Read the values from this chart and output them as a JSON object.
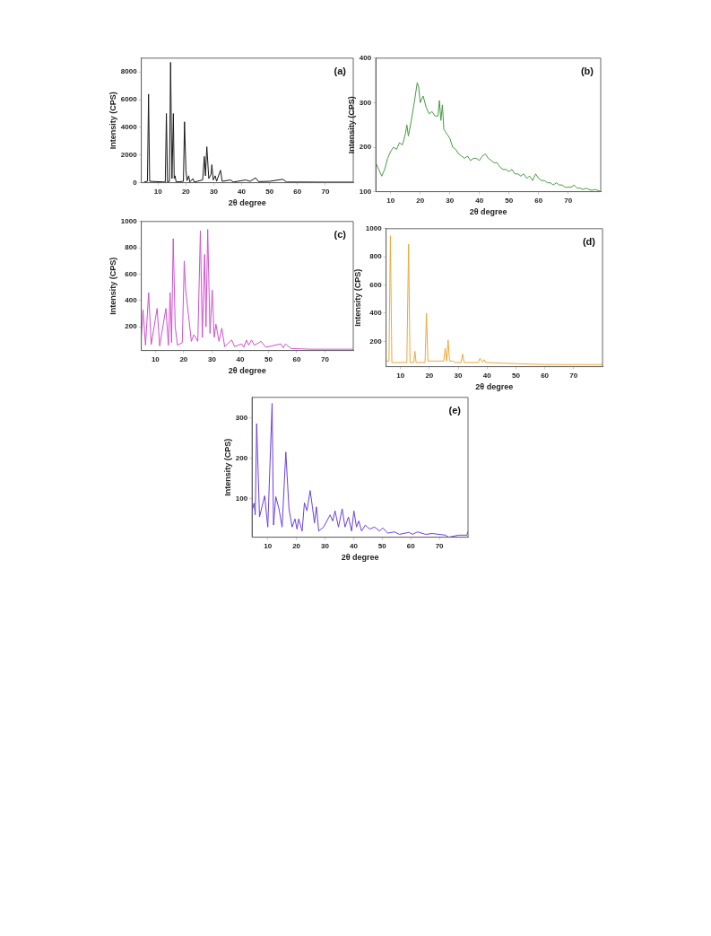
{
  "chart_data": [
    {
      "type": "line",
      "xlabel": "2θ degree",
      "ylabel": "Intensity (CPS)",
      "annotations": [
        "(a)"
      ],
      "xlim": [
        4,
        80
      ],
      "xticks": [
        10,
        20,
        30,
        40,
        50,
        60,
        70
      ],
      "ylim": [
        0,
        9000
      ],
      "yticks": [
        0,
        2000,
        4000,
        6000,
        8000
      ],
      "grid": false,
      "legend": false,
      "x": [
        5,
        6.2,
        6.6,
        7,
        12.6,
        13,
        13.4,
        14.1,
        14.5,
        15,
        15.5,
        15.8,
        16.1,
        16.5,
        19.1,
        19.5,
        20,
        20.4,
        21,
        21.4,
        22.5,
        23,
        26,
        26.6,
        27,
        27.5,
        28.2,
        29,
        29.3,
        29.8,
        30.5,
        31,
        32.4,
        33,
        36,
        37,
        41.5,
        43,
        45,
        46,
        50,
        54.8,
        56,
        60,
        70,
        80
      ],
      "series": [
        {
          "color": "#1a1a1a",
          "values": [
            50,
            100,
            6400,
            100,
            50,
            5000,
            50,
            100,
            8700,
            300,
            5000,
            300,
            500,
            50,
            100,
            4400,
            900,
            150,
            500,
            50,
            300,
            50,
            200,
            1900,
            500,
            2600,
            300,
            600,
            1300,
            200,
            500,
            100,
            900,
            100,
            200,
            50,
            200,
            100,
            350,
            80,
            100,
            250,
            50,
            50,
            40,
            40
          ]
        }
      ]
    },
    {
      "type": "line",
      "xlabel": "2θ degree",
      "ylabel": "Intensity (CPS)",
      "annotations": [
        "(b)"
      ],
      "xlim": [
        5,
        81
      ],
      "xticks": [
        10,
        20,
        30,
        40,
        50,
        60,
        70
      ],
      "ylim": [
        100,
        400
      ],
      "yticks": [
        100,
        200,
        300,
        400
      ],
      "grid": false,
      "legend": false,
      "x": [
        5,
        6,
        7,
        8,
        9,
        10,
        11,
        12,
        13,
        14,
        15,
        15.5,
        16,
        17,
        18,
        19,
        19.5,
        20,
        21,
        22,
        23,
        24,
        25,
        26,
        26.5,
        27,
        27.5,
        28,
        29,
        30,
        31,
        32,
        33,
        34,
        35,
        36,
        37,
        38,
        39,
        40,
        41,
        42,
        43,
        44,
        45,
        46,
        47,
        48,
        49,
        50,
        51,
        52,
        53,
        54,
        55,
        56,
        57,
        58,
        59,
        60,
        61,
        62,
        63,
        64,
        65,
        66,
        67,
        68,
        69,
        70,
        71,
        72,
        73,
        74,
        75,
        76,
        77,
        78,
        79,
        80,
        81
      ],
      "series": [
        {
          "color": "#4a9a44",
          "values": [
            165,
            150,
            135,
            150,
            175,
            190,
            200,
            195,
            210,
            205,
            230,
            250,
            225,
            260,
            300,
            345,
            335,
            300,
            315,
            290,
            275,
            280,
            270,
            270,
            305,
            260,
            295,
            240,
            230,
            220,
            200,
            195,
            185,
            180,
            175,
            180,
            170,
            175,
            175,
            170,
            180,
            185,
            175,
            170,
            165,
            165,
            155,
            150,
            150,
            145,
            150,
            140,
            140,
            135,
            140,
            130,
            135,
            125,
            140,
            130,
            125,
            125,
            120,
            120,
            115,
            120,
            115,
            115,
            110,
            110,
            110,
            115,
            108,
            108,
            105,
            108,
            105,
            103,
            105,
            103,
            100
          ]
        }
      ]
    },
    {
      "type": "line",
      "xlabel": "2θ degree",
      "ylabel": "Intensity (CPS)",
      "annotations": [
        "(c)"
      ],
      "xlim": [
        5,
        80
      ],
      "xticks": [
        10,
        20,
        30,
        40,
        50,
        60,
        70
      ],
      "ylim": [
        20,
        1000
      ],
      "yticks": [
        200,
        400,
        600,
        800,
        1000
      ],
      "grid": false,
      "legend": false,
      "x": [
        5,
        5.6,
        6.5,
        7.6,
        8.5,
        10.6,
        11.5,
        13.7,
        14.6,
        15.2,
        15.7,
        16.3,
        17,
        17.8,
        19.5,
        20.2,
        20.7,
        21.9,
        22.7,
        23.6,
        25,
        25.9,
        26.6,
        27.4,
        27.9,
        28.5,
        29.3,
        30.1,
        30.8,
        31.4,
        32.5,
        33.5,
        34.5,
        37,
        38,
        40.5,
        41.3,
        42.2,
        43,
        44,
        45,
        47.4,
        49,
        54.4,
        55.2,
        56,
        58,
        65,
        80
      ],
      "series": [
        {
          "color": "#d050d0",
          "values": [
            120,
            330,
            60,
            460,
            65,
            340,
            55,
            340,
            60,
            460,
            80,
            870,
            200,
            60,
            80,
            700,
            480,
            250,
            90,
            140,
            90,
            930,
            120,
            750,
            200,
            940,
            150,
            480,
            120,
            220,
            90,
            190,
            50,
            100,
            50,
            70,
            45,
            100,
            60,
            100,
            60,
            90,
            45,
            70,
            40,
            70,
            35,
            30,
            30
          ]
        }
      ]
    },
    {
      "type": "line",
      "xlabel": "2θ degree",
      "ylabel": "Intensity (CPS)",
      "annotations": [
        "(d)"
      ],
      "xlim": [
        5,
        80
      ],
      "xticks": [
        10,
        20,
        30,
        40,
        50,
        60,
        70
      ],
      "ylim": [
        20,
        1000
      ],
      "yticks": [
        200,
        400,
        600,
        800,
        1000
      ],
      "grid": false,
      "legend": false,
      "x": [
        5,
        6,
        6.5,
        7,
        12.2,
        12.8,
        13.3,
        14.6,
        15,
        15.4,
        18.5,
        19,
        19.5,
        25,
        25.5,
        26,
        26.5,
        27,
        28,
        29,
        31,
        31.5,
        32,
        37,
        37.5,
        38.5,
        39,
        39.5,
        45,
        60,
        80
      ],
      "series": [
        {
          "color": "#f0a838",
          "values": [
            60,
            60,
            950,
            50,
            50,
            890,
            50,
            50,
            130,
            50,
            50,
            400,
            60,
            60,
            150,
            60,
            210,
            60,
            60,
            50,
            50,
            110,
            50,
            50,
            80,
            50,
            70,
            50,
            45,
            35,
            35
          ]
        }
      ]
    },
    {
      "type": "line",
      "xlabel": "2θ degree",
      "ylabel": "Intensity (CPS)",
      "annotations": [
        "(e)"
      ],
      "xlim": [
        4.5,
        80
      ],
      "xticks": [
        10,
        20,
        30,
        40,
        50,
        60,
        70
      ],
      "ylim": [
        5,
        350
      ],
      "yticks": [
        100,
        200,
        300
      ],
      "grid": false,
      "legend": false,
      "x": [
        4.5,
        5.2,
        5.6,
        6.1,
        7.1,
        8.9,
        10,
        11.5,
        12,
        12.8,
        13.9,
        15,
        16.3,
        17.4,
        18.5,
        19.5,
        20.2,
        20.8,
        22,
        22.8,
        23.7,
        24.8,
        25.6,
        26.3,
        27,
        27.8,
        29.5,
        31.8,
        32.7,
        33.5,
        34.7,
        36,
        37,
        38.2,
        39.3,
        40.1,
        41,
        41.8,
        42.8,
        44.1,
        45.6,
        47.3,
        49.1,
        50.2,
        51.9,
        54.3,
        56,
        59.4,
        60.6,
        62.3,
        65.2,
        67.5,
        72.1,
        73.2,
        76.7,
        79.6,
        80
      ],
      "series": [
        {
          "color": "#6a40e0",
          "values": [
            70,
            89,
            60,
            285,
            55,
            107,
            30,
            335,
            35,
            105,
            75,
            30,
            215,
            75,
            30,
            50,
            25,
            50,
            20,
            90,
            70,
            120,
            80,
            40,
            80,
            20,
            30,
            60,
            45,
            70,
            30,
            75,
            30,
            55,
            20,
            70,
            30,
            45,
            20,
            35,
            25,
            30,
            20,
            28,
            15,
            18,
            12,
            17,
            12,
            18,
            12,
            14,
            10,
            5,
            10,
            10,
            20
          ]
        }
      ]
    }
  ]
}
